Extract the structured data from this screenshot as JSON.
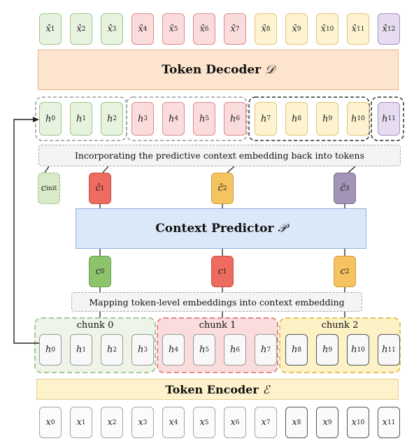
{
  "decoder": {
    "label": "Token Decoder",
    "symbol": "𝒟"
  },
  "encoder": {
    "label": "Token Encoder",
    "symbol": "ℰ"
  },
  "predictor": {
    "label": "Context Predictor",
    "symbol": "𝒫"
  },
  "caption_top": "Incorporating the predictive context embedding back into tokens",
  "caption_bottom": "Mapping token-level embeddings into context embedding",
  "chunks": [
    "chunk 0",
    "chunk 1",
    "chunk 2"
  ],
  "output_tokens": [
    "x̂1",
    "x̂2",
    "x̂3",
    "x̂4",
    "x̂5",
    "x̂6",
    "x̂7",
    "x̂8",
    "x̂9",
    "x̂10",
    "x̂11",
    "x̂12"
  ],
  "hidden_top": [
    "h0",
    "h1",
    "h2",
    "h3",
    "h4",
    "h5",
    "h6",
    "h7",
    "h8",
    "h9",
    "h10",
    "h11"
  ],
  "hidden_bottom": [
    "h0",
    "h1",
    "h2",
    "h3",
    "h4",
    "h5",
    "h6",
    "h7",
    "h8",
    "h9",
    "h10",
    "h11"
  ],
  "input_tokens": [
    "x0",
    "x1",
    "x2",
    "x3",
    "x4",
    "x5",
    "x6",
    "x7",
    "x8",
    "x9",
    "x10",
    "x11"
  ],
  "predicted_contexts": [
    "ĉ1",
    "ĉ2",
    "ĉ3"
  ],
  "contexts": [
    "c0",
    "c1",
    "c2"
  ],
  "c_init": "cinit",
  "colors": {
    "green_fill": "#e7f2df",
    "green_border": "#9cc98a",
    "red_fill": "#fbdcdc",
    "red_border": "#e08a8a",
    "yellow_fill": "#fdf3d0",
    "yellow_border": "#e2c77a",
    "purple_fill": "#e6dcef",
    "purple_border": "#a98fc4",
    "grey_fill": "#f8f8f8",
    "grey_border": "#9a9a9a",
    "decoder_fill": "#fde4cf",
    "decoder_border": "#e4b58d",
    "encoder_fill": "#fdf2cc",
    "encoder_border": "#e2cf8a",
    "predictor_fill": "#dbe8fa",
    "predictor_border": "#8fb0dc",
    "ctx_green": "#8cc36b",
    "ctx_red": "#ee6b60",
    "ctx_yellow": "#f5c35f",
    "ctx_purple": "#a393b7"
  }
}
